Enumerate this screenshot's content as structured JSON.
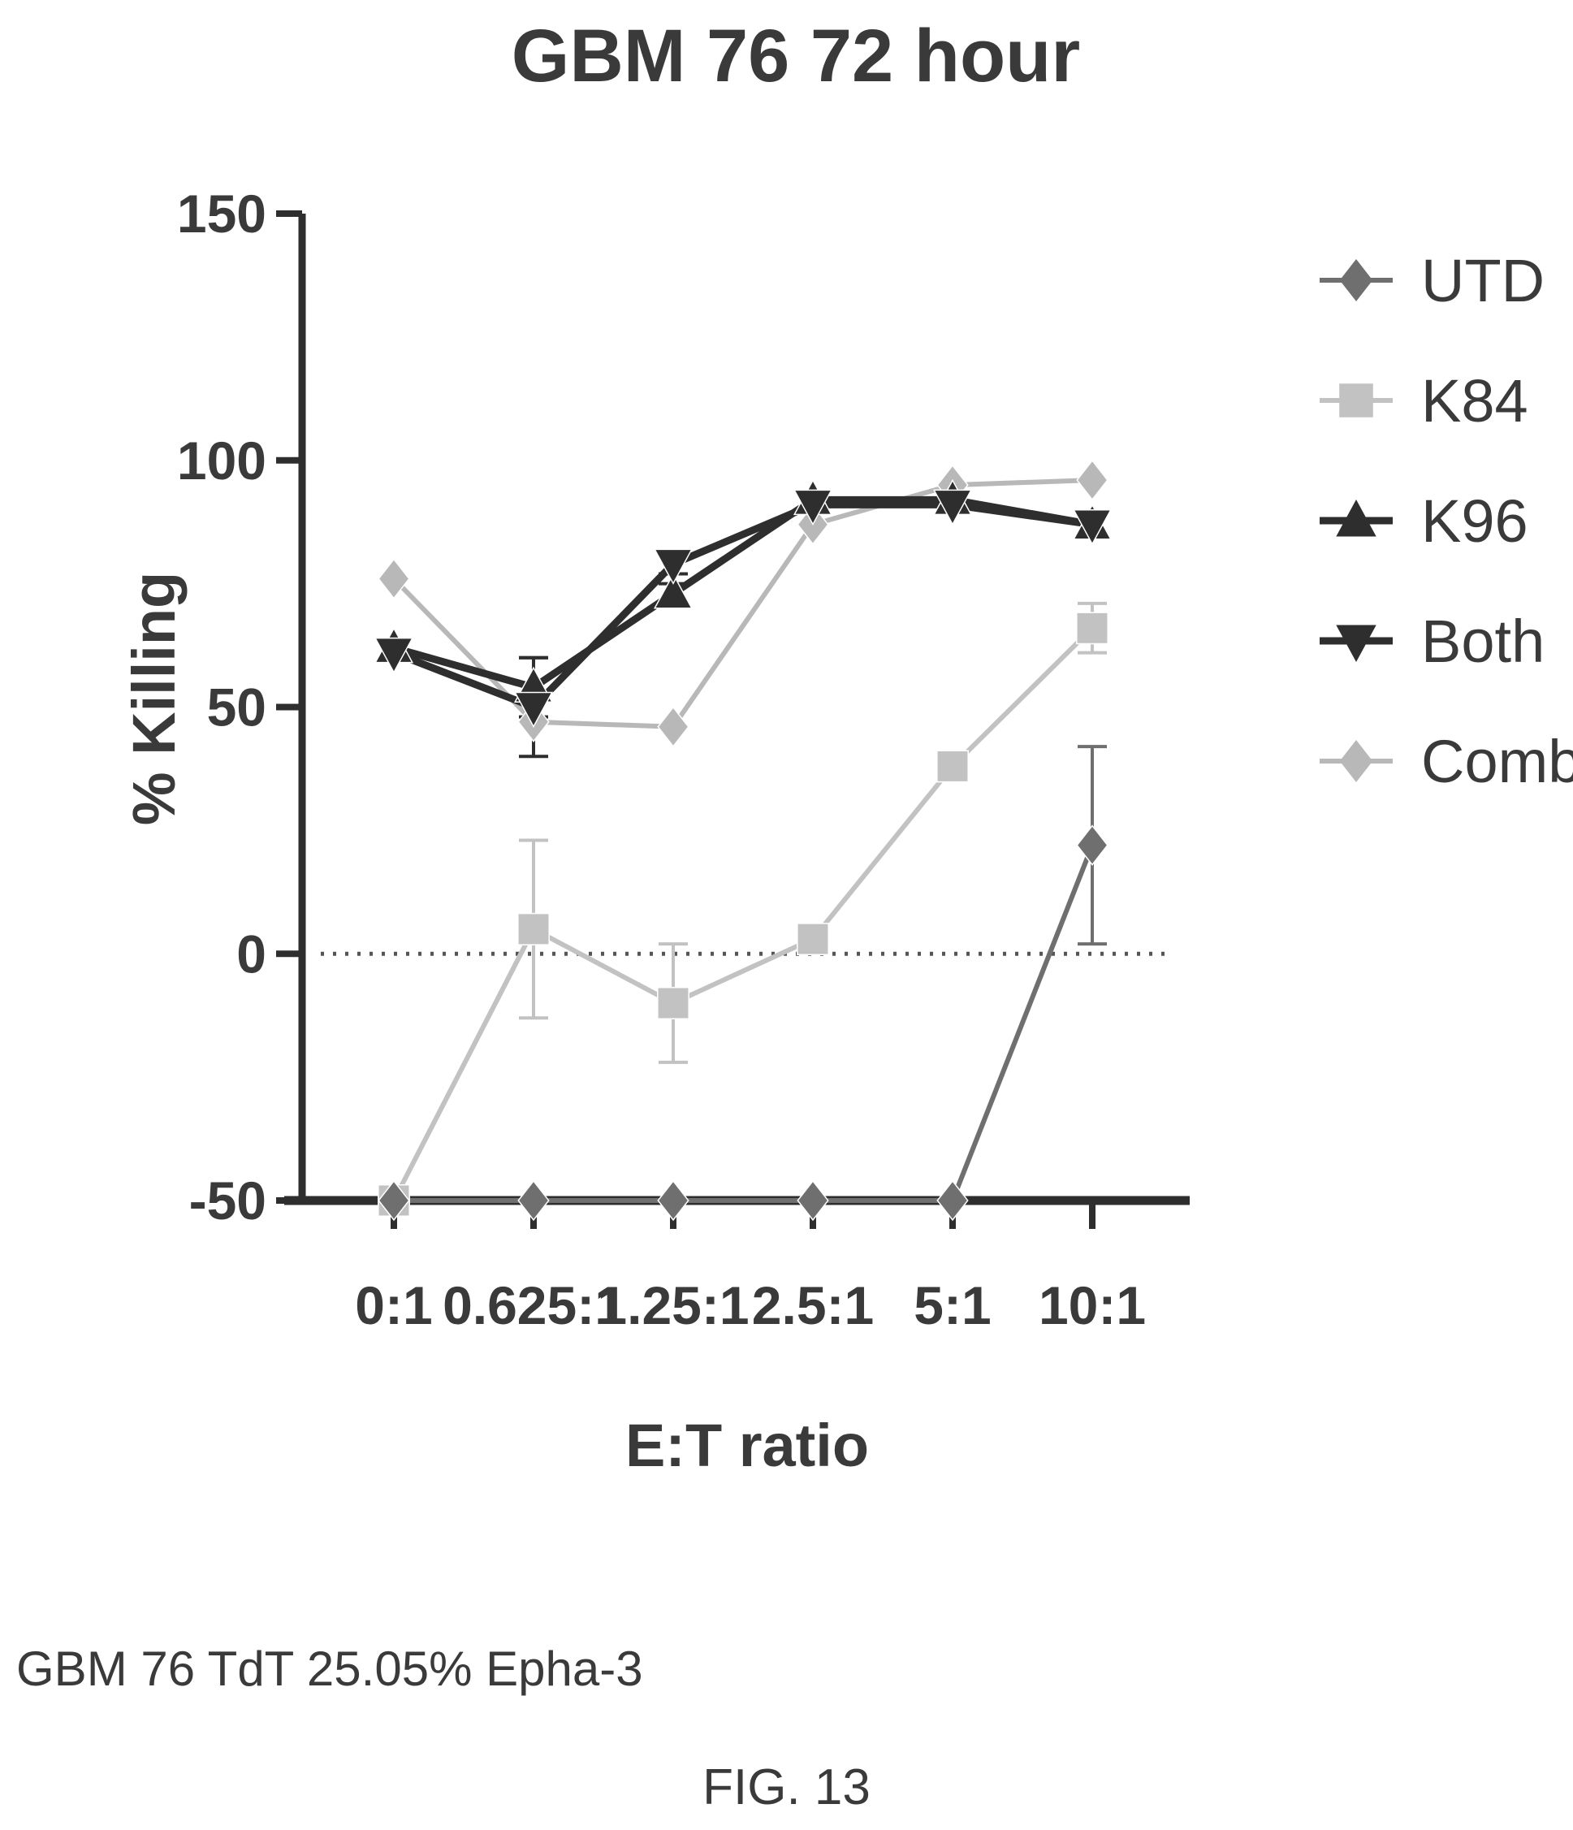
{
  "chart_data": {
    "type": "line",
    "title": "GBM 76 72 hour",
    "xlabel": "E:T ratio",
    "ylabel": "% Killing",
    "categories": [
      "0:1",
      "0.625:1",
      "1.25:1",
      "2.5:1",
      "5:1",
      "10:1"
    ],
    "ylim": [
      -50,
      150
    ],
    "yticks": [
      -50,
      0,
      50,
      100,
      150
    ],
    "reference_line": {
      "y": 0,
      "style": "dotted"
    },
    "legend_position": "right",
    "grid": false,
    "series": [
      {
        "name": "UTD",
        "marker": "diamond",
        "color": "#6f6f6f",
        "values": [
          -50,
          -50,
          -50,
          -50,
          -50,
          22
        ],
        "errors": [
          0,
          0,
          0,
          0,
          0,
          20
        ]
      },
      {
        "name": "K84",
        "marker": "square",
        "color": "#c2c2c2",
        "values": [
          -50,
          5,
          -10,
          3,
          38,
          66
        ],
        "errors": [
          0,
          18,
          12,
          0,
          0,
          5
        ]
      },
      {
        "name": "K96",
        "marker": "triangle-up",
        "color": "#2e2e2e",
        "values": [
          62,
          54,
          73,
          92,
          92,
          87
        ],
        "errors": [
          0,
          6,
          2,
          0,
          0,
          2
        ]
      },
      {
        "name": "Both",
        "marker": "triangle-down",
        "color": "#2e2e2e",
        "values": [
          61,
          50,
          79,
          91,
          91,
          87
        ],
        "errors": [
          0,
          10,
          2,
          0,
          0,
          2
        ]
      },
      {
        "name": "Combi",
        "marker": "diamond",
        "color": "#b8b8b8",
        "values": [
          76,
          47,
          46,
          87,
          95,
          96
        ],
        "errors": [
          0,
          0,
          0,
          0,
          0,
          0
        ]
      }
    ]
  },
  "caption": "GBM 76 TdT 25.05% Epha-3",
  "figure_label": "FIG. 13"
}
